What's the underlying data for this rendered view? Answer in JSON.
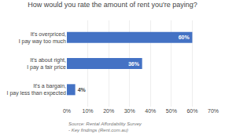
{
  "chart_data": {
    "type": "bar",
    "orientation": "horizontal",
    "title": "How would you rate the amount of rent you're paying?",
    "categories": [
      "It's a bargain, I pay less than expected",
      "It's about right, I pay a fair price",
      "It's overpriced, I pay way too much"
    ],
    "values": [
      4,
      36,
      60
    ],
    "value_labels": [
      "4%",
      "36%",
      "60%"
    ],
    "data_labels": true,
    "color": "#4472C4",
    "xlim": [
      0,
      70
    ],
    "xticks": [
      {
        "value": 0,
        "label": "0%"
      },
      {
        "value": 10,
        "label": "10%"
      },
      {
        "value": 20,
        "label": "20%"
      },
      {
        "value": 30,
        "label": "30%"
      },
      {
        "value": 40,
        "label": "40%"
      },
      {
        "value": 50,
        "label": "50%"
      },
      {
        "value": 60,
        "label": "60%"
      },
      {
        "value": 70,
        "label": "70%"
      }
    ],
    "grid": true,
    "annotations": [
      "Source: Rental Affordability Survey\n- Key findings (Rent.com.au)"
    ]
  }
}
